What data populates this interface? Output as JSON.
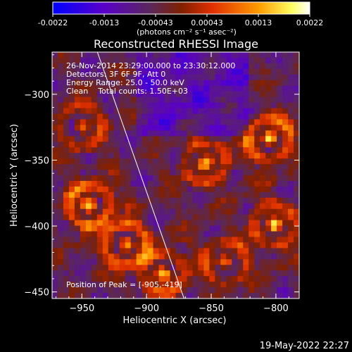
{
  "colorbar": {
    "tick_labels": [
      "-0.0022",
      "-0.0013",
      "-0.00043",
      "0.00043",
      "0.0013",
      "0.0022"
    ],
    "unit_label": "(photons cm⁻² s⁻¹ asec⁻²)"
  },
  "plot": {
    "title": "Reconstructed RHESSI Image",
    "xlabel": "Heliocentric X (arcsec)",
    "ylabel": "Heliocentric Y (arcsec)",
    "info_lines": [
      "26-Nov-2014 23:29:00.000 to 23:30:12.000",
      "Detectors: 3F 6F 9F, Att 0",
      "Energy Range: 25.0 - 50.0 keV",
      "Clean    Total counts: 1.50E+03"
    ],
    "peak_label": "Position of Peak = [-905,-419]",
    "footer_date": "19-May-2022 22:27"
  },
  "chart_data": {
    "type": "heatmap",
    "title": "Reconstructed RHESSI Image",
    "xlabel": "Heliocentric X (arcsec)",
    "ylabel": "Heliocentric Y (arcsec)",
    "xlim": [
      -973,
      -782
    ],
    "ylim": [
      -455,
      -268
    ],
    "x_ticks": [
      -950,
      -900,
      -850,
      -800
    ],
    "y_ticks": [
      -300,
      -350,
      -400,
      -450
    ],
    "x_tick_labels": [
      "−950",
      "−900",
      "−850",
      "−800"
    ],
    "y_tick_labels": [
      "−300",
      "−350",
      "−400",
      "−450"
    ],
    "color_range": [
      -0.0022,
      0.0022
    ],
    "colormap": [
      "#0000ff",
      "#6a00c8",
      "#5a2a5a",
      "#c82800",
      "#ff8c00",
      "#ffff60",
      "#ffffff"
    ],
    "limb_line": [
      [
        -938,
        -268
      ],
      [
        -871,
        -455
      ]
    ],
    "peak": [
      -905,
      -419
    ]
  }
}
